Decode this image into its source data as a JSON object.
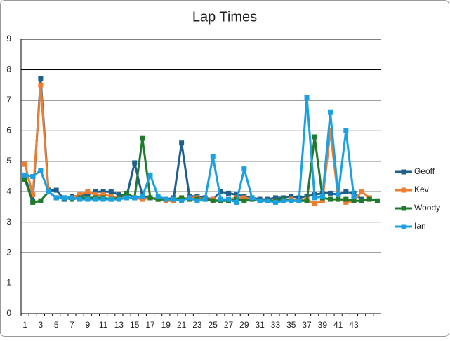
{
  "chart_data": {
    "type": "line",
    "title": "Lap Times",
    "categories": [
      "1",
      null,
      "3",
      null,
      "5",
      null,
      "7",
      null,
      "9",
      null,
      "11",
      null,
      "13",
      null,
      "15",
      null,
      "17",
      null,
      "19",
      null,
      "21",
      null,
      "23",
      null,
      "25",
      null,
      "27",
      null,
      "29",
      null,
      "31",
      null,
      "33",
      null,
      "35",
      null,
      "37",
      null,
      "39",
      null,
      "41",
      null,
      "43",
      null,
      null,
      null
    ],
    "series": [
      {
        "name": "Geoff",
        "color": "#1f5f8b",
        "values": [
          4.5,
          3.7,
          7.7,
          4.05,
          4.05,
          3.75,
          3.85,
          3.85,
          3.9,
          4.0,
          4.0,
          4.0,
          3.9,
          3.85,
          4.95,
          3.85,
          3.8,
          3.75,
          3.75,
          3.8,
          5.6,
          3.85,
          3.85,
          3.8,
          3.75,
          4.0,
          3.95,
          3.9,
          3.85,
          3.8,
          3.75,
          3.75,
          3.8,
          3.8,
          3.85,
          3.8,
          3.85,
          3.9,
          3.95,
          3.95,
          3.9,
          4.0,
          3.95,
          3.75,
          null,
          null
        ]
      },
      {
        "name": "Kev",
        "color": "#ed7d31",
        "values": [
          4.9,
          3.9,
          7.5,
          4.0,
          3.8,
          3.8,
          3.8,
          3.9,
          4.0,
          3.9,
          3.9,
          3.85,
          3.8,
          3.8,
          3.8,
          3.75,
          3.8,
          3.75,
          3.7,
          3.7,
          3.75,
          3.8,
          3.8,
          3.75,
          3.75,
          3.7,
          3.75,
          3.8,
          3.8,
          3.75,
          3.7,
          3.7,
          3.7,
          3.7,
          3.75,
          3.7,
          3.75,
          3.6,
          3.7,
          6.0,
          3.8,
          3.65,
          3.7,
          4.0,
          3.8,
          null
        ]
      },
      {
        "name": "Woody",
        "color": "#217a2c",
        "values": [
          4.4,
          3.65,
          3.7,
          4.0,
          3.8,
          3.8,
          3.75,
          3.8,
          3.8,
          3.8,
          3.8,
          3.75,
          3.8,
          3.95,
          3.8,
          5.75,
          3.8,
          3.75,
          3.75,
          3.75,
          3.8,
          3.75,
          3.75,
          3.75,
          3.7,
          3.7,
          3.7,
          3.75,
          3.7,
          3.75,
          3.7,
          3.7,
          3.7,
          3.75,
          3.7,
          3.7,
          3.7,
          5.8,
          3.8,
          3.75,
          3.75,
          3.75,
          3.7,
          3.7,
          3.75,
          3.7
        ]
      },
      {
        "name": "Ian",
        "color": "#1ba1e2",
        "values": [
          4.55,
          4.5,
          4.7,
          4.0,
          3.8,
          3.8,
          3.8,
          3.75,
          3.75,
          3.75,
          3.75,
          3.75,
          3.75,
          3.8,
          3.8,
          3.85,
          4.55,
          3.85,
          3.75,
          3.75,
          3.7,
          3.8,
          3.7,
          3.75,
          5.15,
          3.75,
          3.75,
          3.65,
          4.75,
          3.8,
          3.7,
          3.7,
          3.65,
          3.7,
          3.7,
          3.7,
          7.1,
          3.8,
          3.85,
          6.6,
          3.9,
          6.0,
          3.85,
          null,
          null,
          null
        ]
      }
    ],
    "ylim": [
      0,
      9
    ],
    "yticks": [
      0,
      1,
      2,
      3,
      4,
      5,
      6,
      7,
      8,
      9
    ],
    "grid": true,
    "legend": "right"
  }
}
